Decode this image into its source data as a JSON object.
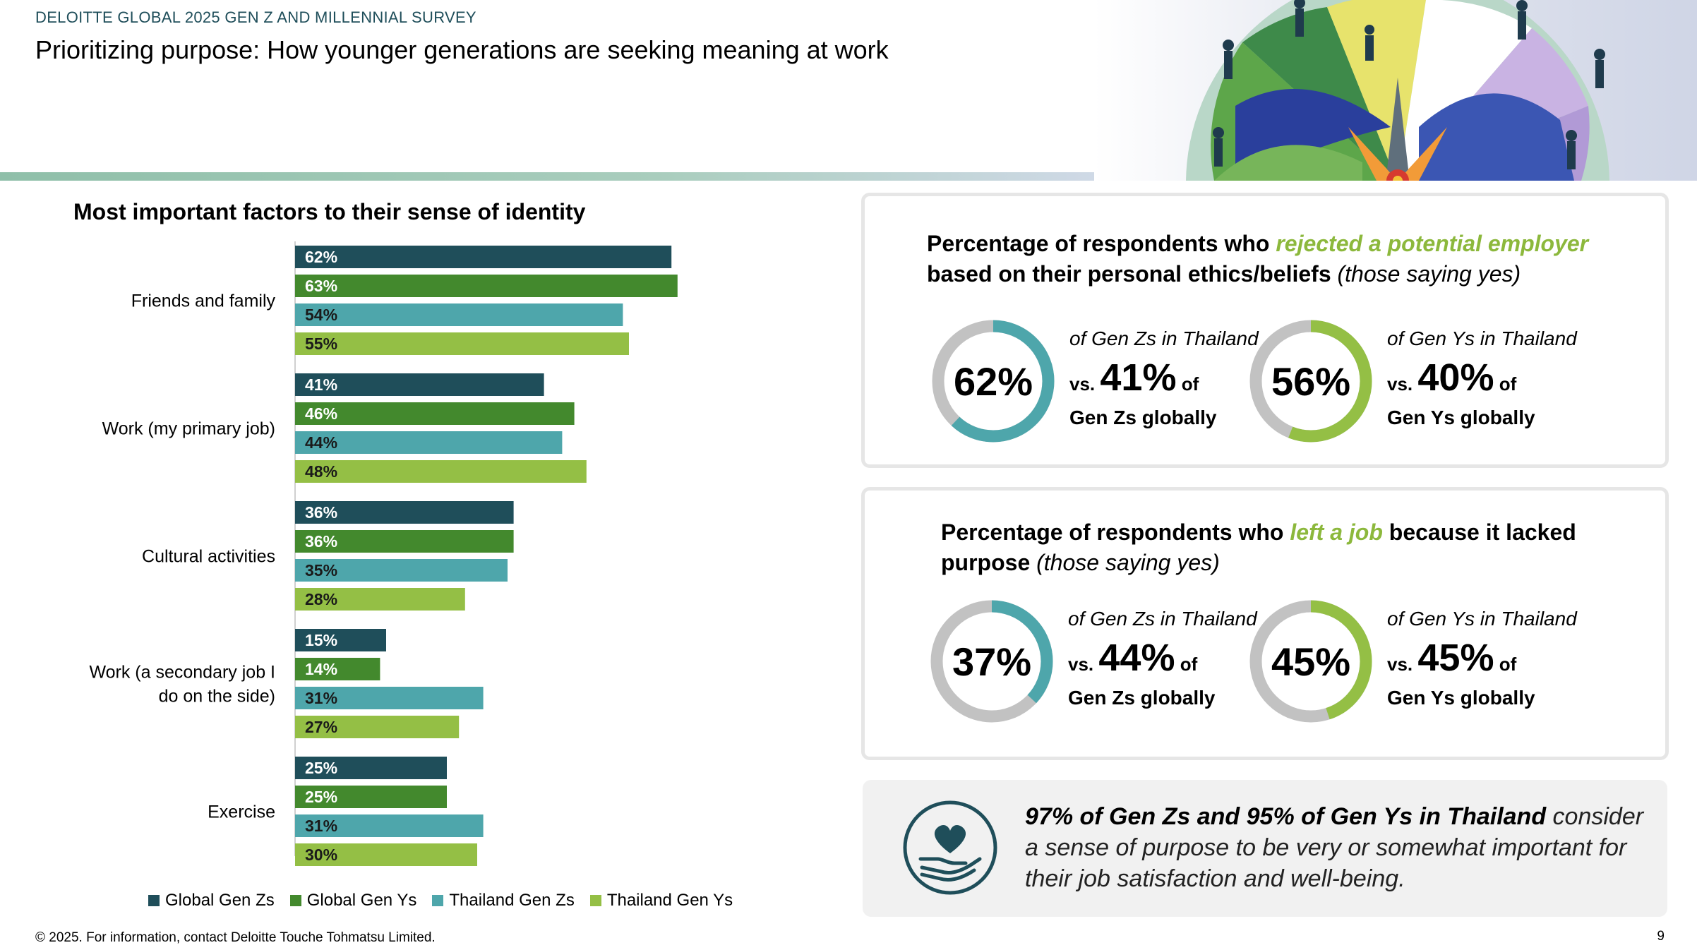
{
  "header": {
    "survey_label": "DELOITTE GLOBAL 2025 GEN Z AND MILLENNIAL SURVEY",
    "title": "Prioritizing purpose: How younger generations are seeking meaning at work"
  },
  "colors": {
    "global_gen_z": "#1f4e5a",
    "global_gen_y": "#43892d",
    "thailand_gen_z": "#4ea6ab",
    "thailand_gen_y": "#94bf45",
    "ring_track": "#c2c2c2",
    "accent_green": "#8cb83c"
  },
  "chart_data": {
    "type": "bar",
    "orientation": "horizontal",
    "title": "Most important factors to their sense of identity",
    "categories": [
      "Friends and family",
      "Work (my primary job)",
      "Cultural activities",
      "Work (a secondary job I do on the side)",
      "Exercise"
    ],
    "category_lines": [
      [
        "Friends and family"
      ],
      [
        "Work (my primary job)"
      ],
      [
        "Cultural activities"
      ],
      [
        "Work (a secondary job I",
        "do on the side)"
      ],
      [
        "Exercise"
      ]
    ],
    "series": [
      {
        "name": "Global Gen Zs",
        "color": "#1f4e5a",
        "values": [
          62,
          41,
          36,
          15,
          25
        ],
        "labels": [
          "62%",
          "41%",
          "36%",
          "15%",
          "25%"
        ]
      },
      {
        "name": "Global Gen Ys",
        "color": "#43892d",
        "values": [
          63,
          46,
          36,
          14,
          25
        ],
        "labels": [
          "63%",
          "46%",
          "36%",
          "14%",
          "25%"
        ]
      },
      {
        "name": "Thailand Gen Zs",
        "color": "#4ea6ab",
        "values": [
          54,
          44,
          35,
          31,
          31
        ],
        "labels": [
          "54%",
          "44%",
          "35%",
          "31%",
          "31%"
        ]
      },
      {
        "name": "Thailand Gen Ys",
        "color": "#94bf45",
        "values": [
          55,
          48,
          28,
          27,
          30
        ],
        "labels": [
          "55%",
          "48%",
          "28%",
          "27%",
          "30%"
        ]
      }
    ],
    "xlim": [
      0,
      100
    ],
    "legend": "bottom"
  },
  "legend": [
    {
      "label": "Global Gen Zs",
      "color": "#1f4e5a"
    },
    {
      "label": "Global Gen Ys",
      "color": "#43892d"
    },
    {
      "label": "Thailand Gen Zs",
      "color": "#4ea6ab"
    },
    {
      "label": "Thailand Gen Ys",
      "color": "#94bf45"
    }
  ],
  "panel_rejected": {
    "heading_pre": "Percentage of respondents who ",
    "heading_highlight": "rejected a potential employer",
    "heading_post": " based on their personal ethics/beliefs ",
    "heading_note": "(those saying yes)",
    "stats": [
      {
        "value": "62%",
        "fraction": 0.62,
        "color": "#4ea6ab",
        "line1": "of Gen Zs in Thailand",
        "vs": "vs. ",
        "compare": "41%",
        "of": " of",
        "line3": "Gen Zs globally"
      },
      {
        "value": "56%",
        "fraction": 0.56,
        "color": "#94bf45",
        "line1": "of Gen Ys in Thailand",
        "vs": "vs. ",
        "compare": "40%",
        "of": " of",
        "line3": "Gen Ys globally"
      }
    ]
  },
  "panel_left_job": {
    "heading_pre": "Percentage of respondents who ",
    "heading_highlight": "left a job",
    "heading_post": " because it lacked purpose ",
    "heading_note": "(those saying yes)",
    "stats": [
      {
        "value": "37%",
        "fraction": 0.37,
        "color": "#4ea6ab",
        "line1": "of Gen Zs in Thailand",
        "vs": "vs. ",
        "compare": "44%",
        "of": " of",
        "line3": "Gen Zs globally"
      },
      {
        "value": "45%",
        "fraction": 0.45,
        "color": "#94bf45",
        "line1": "of Gen Ys in Thailand",
        "vs": "vs. ",
        "compare": "45%",
        "of": " of",
        "line3": "Gen Ys globally"
      }
    ]
  },
  "callout": {
    "icon": "heart-in-hand-icon",
    "bold_text": "97% of Gen Zs and 95% of Gen Ys in Thailand",
    "rest_text": " consider a sense of purpose to be very or somewhat important for their job satisfaction and well-being."
  },
  "footer": {
    "copyright": "© 2025. For information, contact Deloitte Touche Tohmatsu Limited.",
    "page_number": "9"
  }
}
